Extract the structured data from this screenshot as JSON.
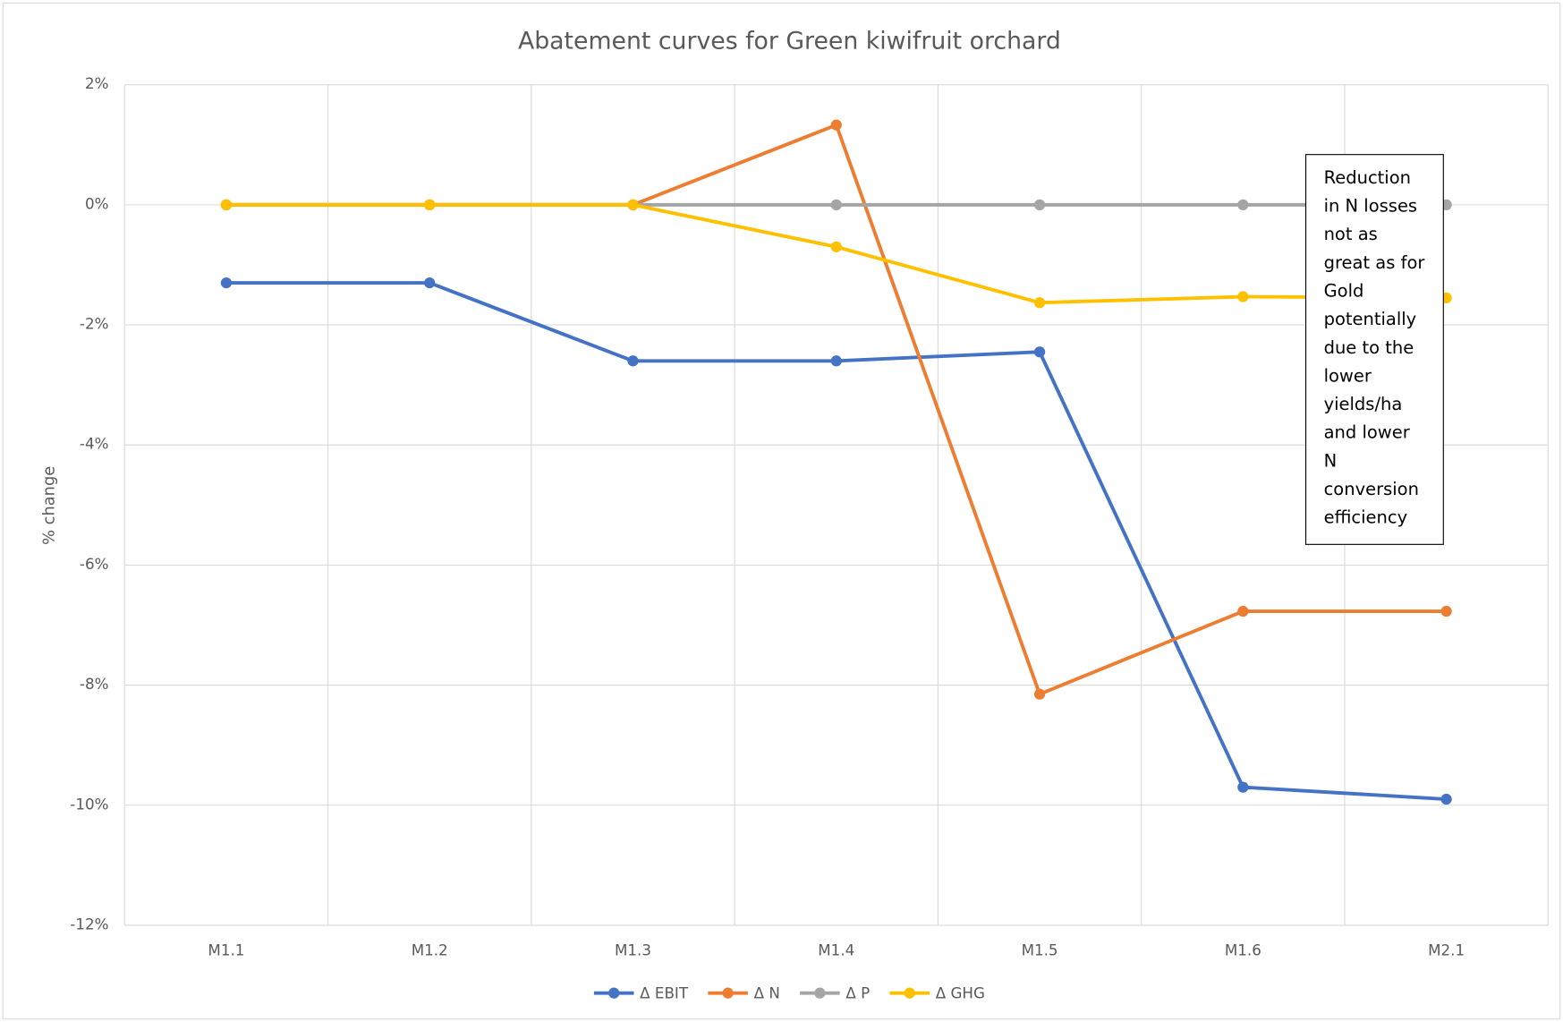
{
  "chart_data": {
    "type": "line",
    "title": "Abatement curves for Green kiwifruit orchard",
    "y_label": "% change",
    "categories": [
      "M1.1",
      "M1.2",
      "M1.3",
      "M1.4",
      "M1.5",
      "M1.6",
      "M2.1"
    ],
    "series": [
      {
        "name": "Δ EBIT",
        "color": "#4472c4",
        "values": [
          -1.3,
          -1.3,
          -2.6,
          -2.6,
          -2.45,
          -9.7,
          -9.9
        ]
      },
      {
        "name": "Δ N",
        "color": "#ed7d31",
        "values": [
          0,
          0,
          0,
          1.33,
          -8.15,
          -6.77,
          -6.77
        ]
      },
      {
        "name": "Δ P",
        "color": "#a5a5a5",
        "values": [
          0,
          0,
          0,
          0,
          0,
          0,
          0
        ]
      },
      {
        "name": "Δ GHG",
        "color": "#ffc000",
        "values": [
          0,
          0,
          0,
          -0.7,
          -1.63,
          -1.53,
          -1.55
        ]
      }
    ],
    "ylim": [
      -12,
      2
    ],
    "yticks": [
      {
        "value": 2,
        "label": "2%"
      },
      {
        "value": 0,
        "label": "0%"
      },
      {
        "value": -2,
        "label": "-2%"
      },
      {
        "value": -4,
        "label": "-4%"
      },
      {
        "value": -6,
        "label": "-6%"
      },
      {
        "value": -8,
        "label": "-8%"
      },
      {
        "value": -10,
        "label": "-10%"
      },
      {
        "value": -12,
        "label": "-12%"
      }
    ],
    "grid": true,
    "legend": "bottom",
    "annotation_lines": [
      "Reduction",
      "in N losses",
      "not as",
      "great as for",
      "Gold",
      "potentially",
      "due to the",
      "lower",
      "yields/ha",
      "and lower",
      "N",
      "conversion",
      "efficiency"
    ]
  }
}
